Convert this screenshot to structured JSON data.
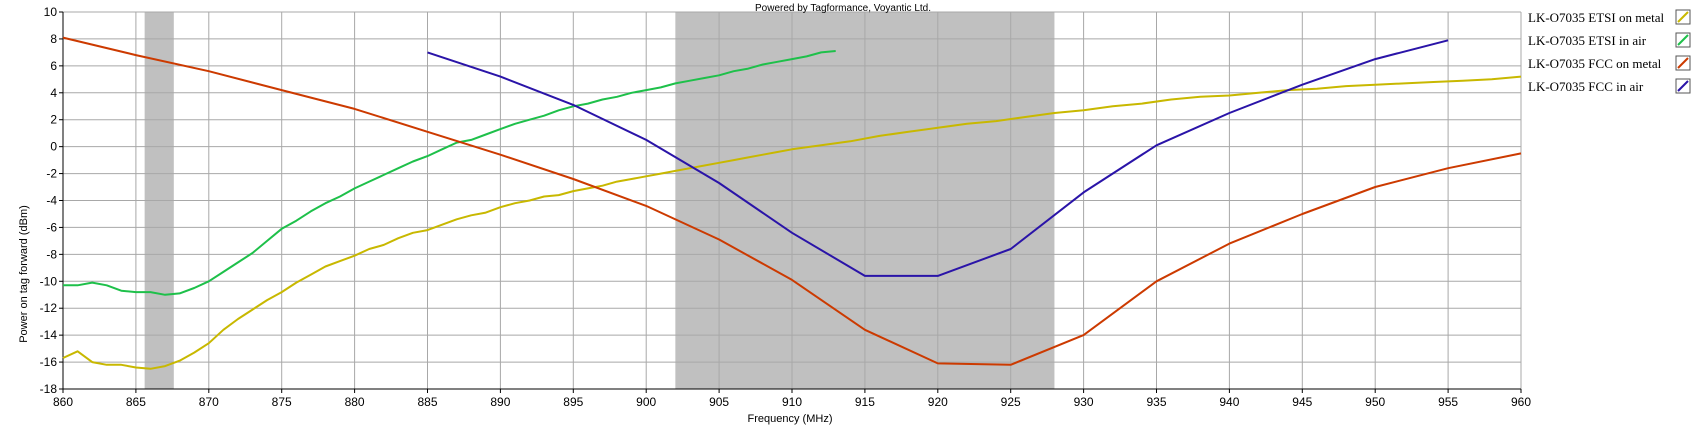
{
  "chart_data": {
    "type": "line",
    "credit": "Powered by Tagformance, Voyantic Ltd.",
    "xlabel": "Frequency (MHz)",
    "ylabel": "Power on tag forward (dBm)",
    "xlim": [
      860,
      960
    ],
    "ylim": [
      -18,
      10
    ],
    "x_ticks": [
      860,
      865,
      870,
      875,
      880,
      885,
      890,
      895,
      900,
      905,
      910,
      915,
      920,
      925,
      930,
      935,
      940,
      945,
      950,
      955,
      960
    ],
    "y_ticks": [
      10,
      8,
      6,
      4,
      2,
      0,
      -2,
      -4,
      -6,
      -8,
      -10,
      -12,
      -14,
      -16,
      -18
    ],
    "grid": true,
    "legend_position": "right",
    "shaded_bands": [
      {
        "x0": 865.6,
        "x1": 867.6,
        "color": "#c0c0c0"
      },
      {
        "x0": 902,
        "x1": 928,
        "color": "#c0c0c0"
      }
    ],
    "series": [
      {
        "name": "LK-O7035 ETSI on metal",
        "color": "#c8b800",
        "points": [
          [
            860,
            -15.7
          ],
          [
            861,
            -15.2
          ],
          [
            862,
            -16
          ],
          [
            863,
            -16.2
          ],
          [
            864,
            -16.2
          ],
          [
            865,
            -16.4
          ],
          [
            866,
            -16.5
          ],
          [
            867,
            -16.3
          ],
          [
            868,
            -15.9
          ],
          [
            869,
            -15.3
          ],
          [
            870,
            -14.6
          ],
          [
            871,
            -13.6
          ],
          [
            872,
            -12.8
          ],
          [
            873,
            -12.1
          ],
          [
            874,
            -11.4
          ],
          [
            875,
            -10.8
          ],
          [
            876,
            -10.1
          ],
          [
            877,
            -9.5
          ],
          [
            878,
            -8.9
          ],
          [
            879,
            -8.5
          ],
          [
            880,
            -8.1
          ],
          [
            881,
            -7.6
          ],
          [
            882,
            -7.3
          ],
          [
            883,
            -6.8
          ],
          [
            884,
            -6.4
          ],
          [
            885,
            -6.2
          ],
          [
            886,
            -5.8
          ],
          [
            887,
            -5.4
          ],
          [
            888,
            -5.1
          ],
          [
            889,
            -4.9
          ],
          [
            890,
            -4.5
          ],
          [
            891,
            -4.2
          ],
          [
            892,
            -4.0
          ],
          [
            893,
            -3.7
          ],
          [
            894,
            -3.6
          ],
          [
            895,
            -3.3
          ],
          [
            896,
            -3.1
          ],
          [
            897,
            -2.9
          ],
          [
            898,
            -2.6
          ],
          [
            899,
            -2.4
          ],
          [
            900,
            -2.2
          ],
          [
            901,
            -2.0
          ],
          [
            902,
            -1.8
          ],
          [
            903,
            -1.6
          ],
          [
            904,
            -1.4
          ],
          [
            905,
            -1.2
          ],
          [
            906,
            -1.0
          ],
          [
            907,
            -0.8
          ],
          [
            908,
            -0.6
          ],
          [
            909,
            -0.4
          ],
          [
            910,
            -0.2
          ],
          [
            912,
            0.1
          ],
          [
            914,
            0.4
          ],
          [
            916,
            0.8
          ],
          [
            918,
            1.1
          ],
          [
            920,
            1.4
          ],
          [
            922,
            1.7
          ],
          [
            924,
            1.9
          ],
          [
            926,
            2.2
          ],
          [
            928,
            2.5
          ],
          [
            930,
            2.7
          ],
          [
            932,
            3.0
          ],
          [
            934,
            3.2
          ],
          [
            936,
            3.5
          ],
          [
            938,
            3.7
          ],
          [
            940,
            3.8
          ],
          [
            942,
            4.0
          ],
          [
            944,
            4.2
          ],
          [
            946,
            4.3
          ],
          [
            948,
            4.5
          ],
          [
            950,
            4.6
          ],
          [
            952,
            4.7
          ],
          [
            954,
            4.8
          ],
          [
            956,
            4.9
          ],
          [
            958,
            5.0
          ],
          [
            960,
            5.2
          ]
        ]
      },
      {
        "name": "LK-O7035 ETSI in air",
        "color": "#1ec04a",
        "points": [
          [
            860,
            -10.3
          ],
          [
            861,
            -10.3
          ],
          [
            862,
            -10.1
          ],
          [
            863,
            -10.3
          ],
          [
            864,
            -10.7
          ],
          [
            865,
            -10.8
          ],
          [
            866,
            -10.8
          ],
          [
            867,
            -11.0
          ],
          [
            868,
            -10.9
          ],
          [
            869,
            -10.5
          ],
          [
            870,
            -10.0
          ],
          [
            871,
            -9.3
          ],
          [
            872,
            -8.6
          ],
          [
            873,
            -7.9
          ],
          [
            874,
            -7.0
          ],
          [
            875,
            -6.1
          ],
          [
            876,
            -5.5
          ],
          [
            877,
            -4.8
          ],
          [
            878,
            -4.2
          ],
          [
            879,
            -3.7
          ],
          [
            880,
            -3.1
          ],
          [
            881,
            -2.6
          ],
          [
            882,
            -2.1
          ],
          [
            883,
            -1.6
          ],
          [
            884,
            -1.1
          ],
          [
            885,
            -0.7
          ],
          [
            886,
            -0.2
          ],
          [
            887,
            0.3
          ],
          [
            888,
            0.5
          ],
          [
            889,
            0.9
          ],
          [
            890,
            1.3
          ],
          [
            891,
            1.7
          ],
          [
            892,
            2.0
          ],
          [
            893,
            2.3
          ],
          [
            894,
            2.7
          ],
          [
            895,
            3.0
          ],
          [
            896,
            3.2
          ],
          [
            897,
            3.5
          ],
          [
            898,
            3.7
          ],
          [
            899,
            4.0
          ],
          [
            900,
            4.2
          ],
          [
            901,
            4.4
          ],
          [
            902,
            4.7
          ],
          [
            903,
            4.9
          ],
          [
            904,
            5.1
          ],
          [
            905,
            5.3
          ],
          [
            906,
            5.6
          ],
          [
            907,
            5.8
          ],
          [
            908,
            6.1
          ],
          [
            909,
            6.3
          ],
          [
            910,
            6.5
          ],
          [
            911,
            6.7
          ],
          [
            912,
            7.0
          ],
          [
            913,
            7.1
          ]
        ]
      },
      {
        "name": "LK-O7035 FCC on metal",
        "color": "#cc3a00",
        "points": [
          [
            860,
            8.1
          ],
          [
            865,
            6.8
          ],
          [
            870,
            5.6
          ],
          [
            875,
            4.2
          ],
          [
            880,
            2.8
          ],
          [
            885,
            1.1
          ],
          [
            890,
            -0.6
          ],
          [
            895,
            -2.4
          ],
          [
            900,
            -4.4
          ],
          [
            905,
            -6.9
          ],
          [
            910,
            -9.9
          ],
          [
            915,
            -13.6
          ],
          [
            920,
            -16.1
          ],
          [
            925,
            -16.2
          ],
          [
            930,
            -14.0
          ],
          [
            935,
            -10.0
          ],
          [
            940,
            -7.2
          ],
          [
            945,
            -5.0
          ],
          [
            950,
            -3.0
          ],
          [
            955,
            -1.6
          ],
          [
            960,
            -0.5
          ]
        ]
      },
      {
        "name": "LK-O7035 FCC in air",
        "color": "#2a14a8",
        "points": [
          [
            885,
            7.0
          ],
          [
            890,
            5.2
          ],
          [
            895,
            3.1
          ],
          [
            900,
            0.5
          ],
          [
            905,
            -2.7
          ],
          [
            910,
            -6.4
          ],
          [
            915,
            -9.6
          ],
          [
            920,
            -9.6
          ],
          [
            925,
            -7.6
          ],
          [
            930,
            -3.4
          ],
          [
            935,
            0.1
          ],
          [
            940,
            2.5
          ],
          [
            945,
            4.6
          ],
          [
            950,
            6.5
          ],
          [
            955,
            7.9
          ]
        ]
      }
    ]
  }
}
